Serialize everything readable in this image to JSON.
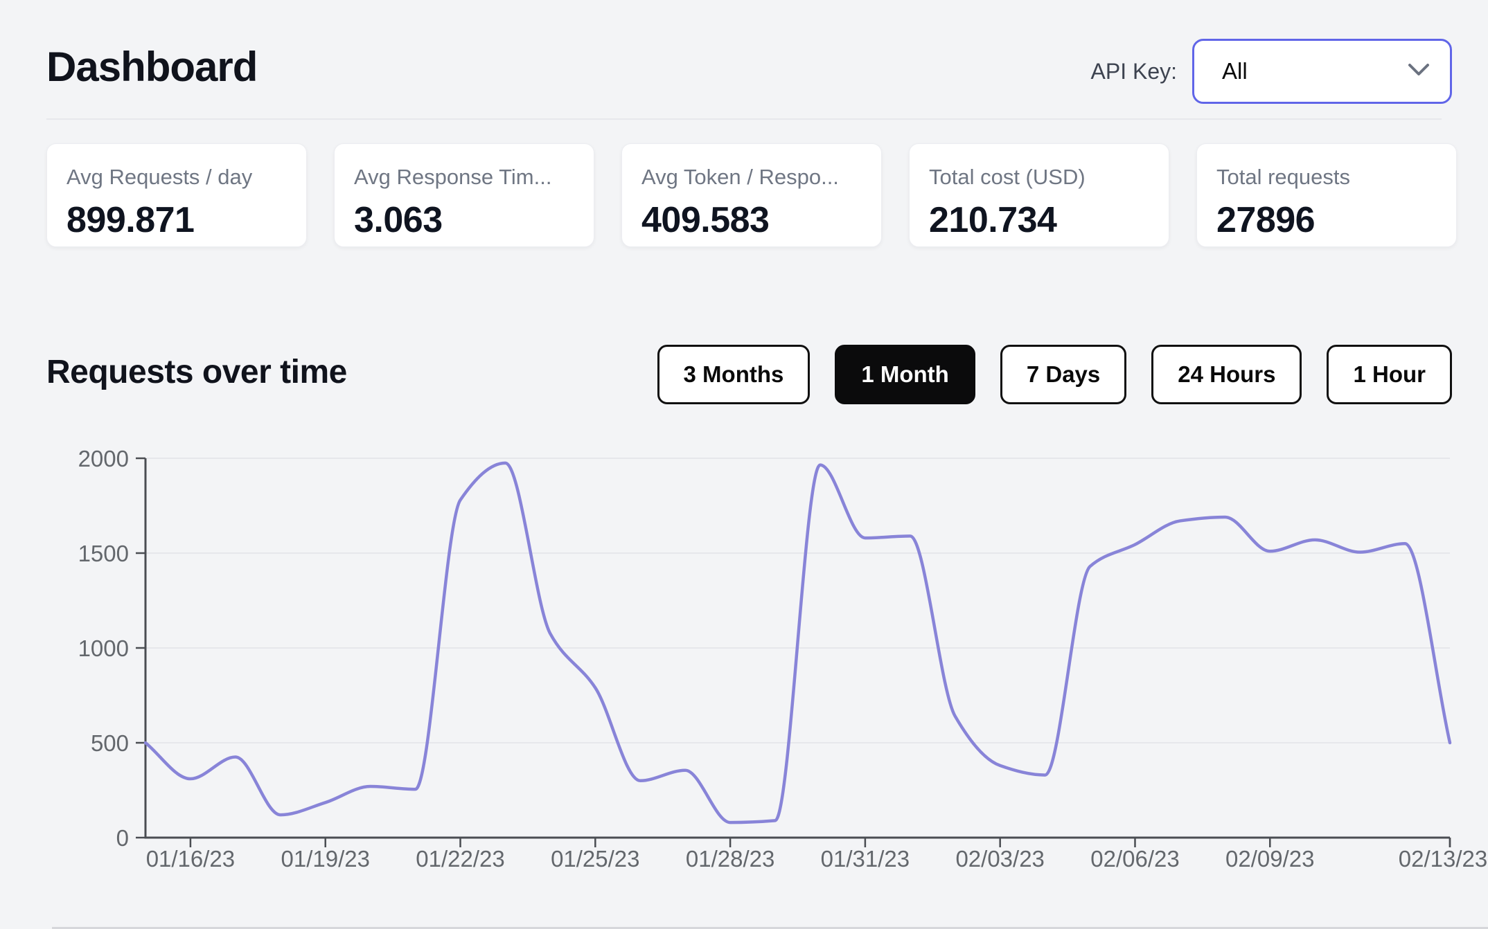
{
  "header": {
    "title": "Dashboard",
    "api_key_label": "API Key:",
    "api_key_value": "All"
  },
  "stats": [
    {
      "label": "Avg Requests / day",
      "value": "899.871"
    },
    {
      "label": "Avg Response Tim...",
      "value": "3.063"
    },
    {
      "label": "Avg Token / Respo...",
      "value": "409.583"
    },
    {
      "label": "Total cost (USD)",
      "value": "210.734"
    },
    {
      "label": "Total requests",
      "value": "27896"
    }
  ],
  "section": {
    "title": "Requests over time",
    "range_buttons": [
      {
        "label": "3 Months",
        "active": false
      },
      {
        "label": "1 Month",
        "active": true
      },
      {
        "label": "7 Days",
        "active": false
      },
      {
        "label": "24 Hours",
        "active": false
      },
      {
        "label": "1 Hour",
        "active": false
      }
    ]
  },
  "colors": {
    "accent_select_border": "#6065e8",
    "line": "#8884d8",
    "grid": "#e6e7eb",
    "axis": "#4a4d52",
    "tick_text": "#63676c",
    "active_button_bg": "#0b0b0c",
    "page_bg": "#f3f4f6"
  },
  "chart_data": {
    "type": "line",
    "title": "Requests over time",
    "xlabel": "",
    "ylabel": "",
    "grid": true,
    "legend": false,
    "ylim": [
      0,
      2000
    ],
    "y_ticks": [
      0,
      500,
      1000,
      1500,
      2000
    ],
    "x_dates": [
      "01/15/23",
      "01/16/23",
      "01/17/23",
      "01/18/23",
      "01/19/23",
      "01/20/23",
      "01/21/23",
      "01/22/23",
      "01/23/23",
      "01/24/23",
      "01/25/23",
      "01/26/23",
      "01/27/23",
      "01/28/23",
      "01/29/23",
      "01/30/23",
      "01/31/23",
      "02/01/23",
      "02/02/23",
      "02/03/23",
      "02/04/23",
      "02/05/23",
      "02/06/23",
      "02/07/23",
      "02/08/23",
      "02/09/23",
      "02/10/23",
      "02/11/23",
      "02/12/23",
      "02/13/23"
    ],
    "values": [
      500,
      310,
      425,
      120,
      185,
      270,
      255,
      1780,
      1975,
      1075,
      790,
      300,
      355,
      80,
      90,
      1965,
      1580,
      1590,
      640,
      380,
      330,
      1430,
      1545,
      1670,
      1690,
      1510,
      1570,
      1505,
      1550,
      500
    ],
    "x_tick_labels": [
      "01/16/23",
      "01/19/23",
      "01/22/23",
      "01/25/23",
      "01/28/23",
      "01/31/23",
      "02/03/23",
      "02/06/23",
      "02/09/23",
      "02/13/23"
    ],
    "x_tick_indices": [
      1,
      4,
      7,
      10,
      13,
      16,
      19,
      22,
      25,
      29
    ],
    "line_color": "#8884d8"
  }
}
